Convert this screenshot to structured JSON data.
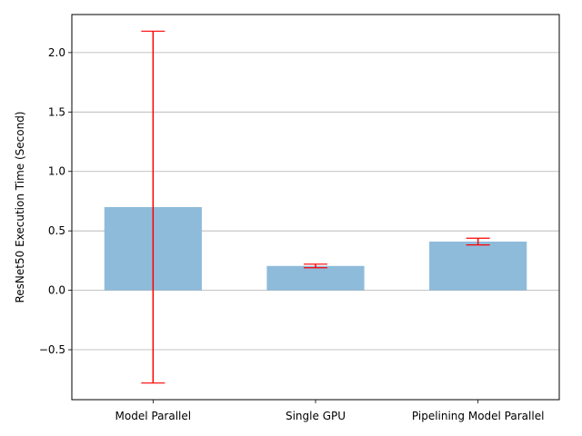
{
  "chart_data": {
    "type": "bar",
    "title": "",
    "xlabel": "",
    "ylabel": "ResNet50 Execution Time (Second)",
    "categories": [
      "Model Parallel",
      "Single GPU",
      "Pipelining Model Parallel"
    ],
    "values": [
      0.7,
      0.205,
      0.41
    ],
    "error_bars": [
      1.48,
      0.015,
      0.028
    ],
    "ylim": [
      -0.92,
      2.32
    ],
    "yticks": [
      -0.5,
      0.0,
      0.5,
      1.0,
      1.5,
      2.0
    ],
    "ytick_labels": [
      "−0.5",
      "0.0",
      "0.5",
      "1.0",
      "1.5",
      "2.0"
    ],
    "grid": "horizontal",
    "colors": {
      "bar": "#8fbbdb",
      "error": "#ff0000",
      "grid": "#b0b0b0"
    }
  }
}
